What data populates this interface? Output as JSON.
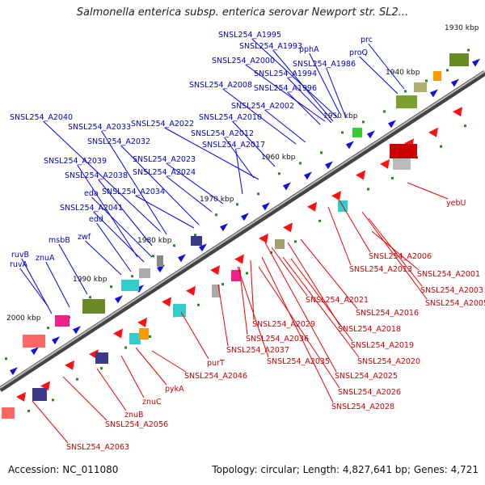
{
  "title": "Salmonella enterica subsp. enterica serovar Newport str. SL2...",
  "footer": {
    "accession": "Accession: NC_011080",
    "summary": "Topology: circular; Length: 4,827,641 bp; Genes: 4,721"
  },
  "colors": {
    "forward_label": "#0000cc",
    "reverse_label": "#dd0000",
    "forward_gene": "#1010e0",
    "reverse_gene": "#ff1010",
    "backbone": "#888888"
  },
  "ticks": [
    "1930 kbp",
    "1940 kbp",
    "1950 kbp",
    "1960 kbp",
    "1970 kbp",
    "1980 kbp",
    "1990 kbp",
    "2000 kbp"
  ],
  "labels_top": [
    "SNSL254_A1995",
    "SNSL254_A1993",
    "pphA",
    "prc",
    "SNSL254_A2000",
    "proQ",
    "SNSL254_A1986",
    "SNSL254_A1994",
    "SNSL254_A2008",
    "SNSL254_A1996",
    "SNSL254_A2002",
    "SNSL254_A2040",
    "SNSL254_A2022",
    "SNSL254_A2010",
    "SNSL254_A2033",
    "SNSL254_A2012",
    "SNSL254_A2032",
    "SNSL254_A2017",
    "SNSL254_A2039",
    "SNSL254_A2023",
    "SNSL254_A2024",
    "SNSL254_A2038",
    "eda",
    "SNSL254_A2034",
    "SNSL254_A2041",
    "edd",
    "zwf",
    "msbB",
    "ruvB",
    "znuA",
    "ruvA"
  ],
  "labels_bottom": [
    "yebU",
    "SNSL254_A2006",
    "SNSL254_A2013",
    "SNSL254_A2001",
    "SNSL254_A2003",
    "SNSL254_A2005",
    "SNSL254_A2021",
    "SNSL254_A2016",
    "SNSL254_A2029",
    "SNSL254_A2018",
    "SNSL254_A2036",
    "SNSL254_A2019",
    "SNSL254_A2037",
    "SNSL254_A2020",
    "purT",
    "SNSL254_A2035",
    "SNSL254_A2025",
    "SNSL254_A2046",
    "SNSL254_A2026",
    "pykA",
    "SNSL254_A2028",
    "znuC",
    "znuB",
    "SNSL254_A2056",
    "SNSL254_A2063"
  ]
}
